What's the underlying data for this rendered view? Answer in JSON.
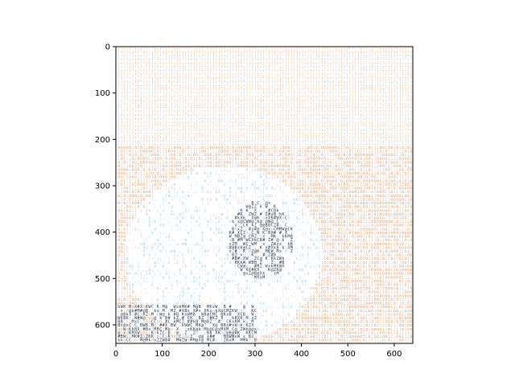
{
  "chart_data": {
    "type": "heatmap",
    "title": "",
    "xlabel": "",
    "ylabel": "",
    "xlim": [
      0,
      640
    ],
    "ylim": [
      640,
      0
    ],
    "x_ticks": [
      0,
      100,
      200,
      300,
      400,
      500,
      600
    ],
    "y_ticks": [
      0,
      100,
      200,
      300,
      400,
      500,
      600
    ],
    "grid": false,
    "legend": "none",
    "colors": {
      "background_glyph": "#e0915a",
      "light_region_glyph": "#8fc1e0",
      "dark_glyph": "#1f2f44",
      "axis": "#000000"
    },
    "glyph_charset": ".,:;ocCxXkKZMWB#@",
    "regions": {
      "upper_band_y": [
        0,
        220
      ],
      "bright_shape_center": [
        230,
        450
      ],
      "bright_shape_radius": 190,
      "dark_figure_center": [
        310,
        420
      ],
      "dark_figure_size": [
        140,
        170
      ]
    }
  }
}
